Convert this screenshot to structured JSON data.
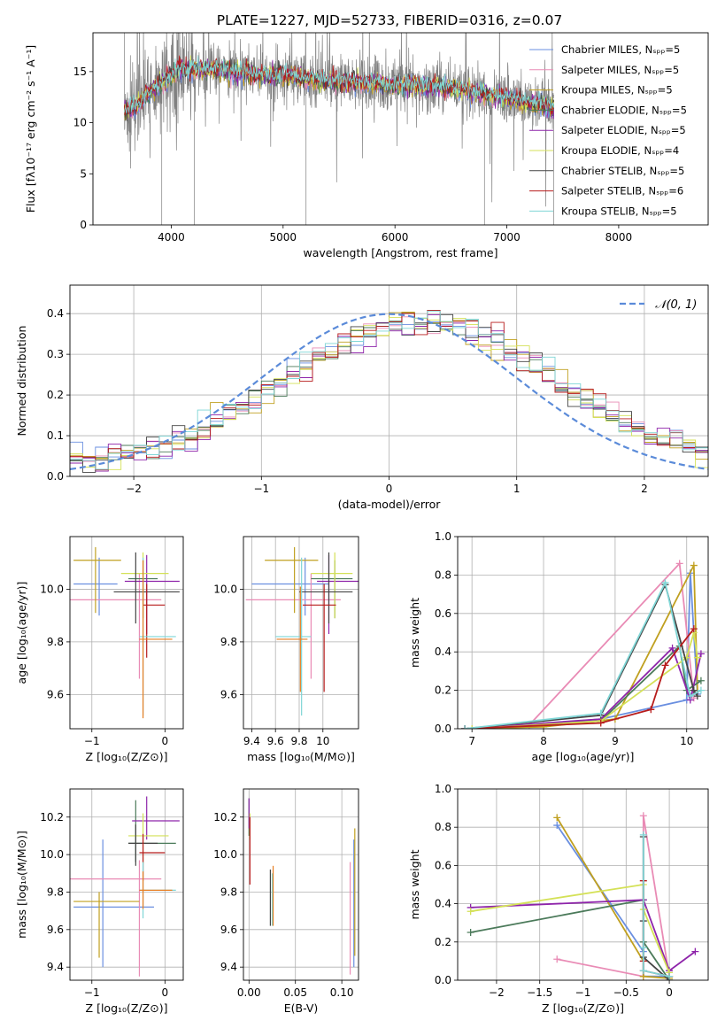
{
  "figure_title": "PLATE=1227, MJD=52733, FIBERID=0316, z=0.07",
  "colors": {
    "grid": "#b0b0b0",
    "series": [
      "#6a8fe0",
      "#e98bb5",
      "#c0a020",
      "#4b7a5a",
      "#8e24aa",
      "#d4e157",
      "#444444",
      "#b71c1c",
      "#7fd6d6",
      "#e67e22"
    ]
  },
  "chart_data": [
    {
      "id": "spectrum",
      "type": "line",
      "xlabel": "wavelength [Angstrom, rest frame]",
      "ylabel": "Flux [fλ10⁻¹⁷ erg cm⁻² s⁻¹ A⁻¹]",
      "xlim": [
        3300,
        8800
      ],
      "ylim": [
        0,
        18.8
      ],
      "xticks": [
        4000,
        5000,
        6000,
        7000,
        8000
      ],
      "yticks": [
        0,
        5,
        10,
        15
      ],
      "grid": false,
      "legend_position": "top-right",
      "legend": [
        "Chabrier MILES, Nₛₚₚ=5",
        "Salpeter MILES, Nₛₚₚ=5",
        "Kroupa MILES, Nₛₚₚ=5",
        "Chabrier ELODIE, Nₛₚₚ=5",
        "Salpeter ELODIE, Nₛₚₚ=5",
        "Kroupa ELODIE, Nₛₚₚ=4",
        "Chabrier STELIB, Nₛₚₚ=5",
        "Salpeter STELIB, Nₛₚₚ=6",
        "Kroupa STELIB, Nₛₚₚ=5"
      ],
      "continuum": {
        "x": [
          3580,
          3700,
          3800,
          3900,
          4000,
          4100,
          4200,
          4400,
          4600,
          4800,
          5000,
          5200,
          5500,
          5800,
          6000,
          6300,
          6600,
          6900,
          7200,
          7400
        ],
        "y": [
          11.0,
          11.8,
          13.0,
          13.8,
          14.6,
          15.4,
          15.1,
          15.2,
          15.0,
          14.7,
          14.6,
          14.3,
          14.0,
          13.8,
          13.7,
          13.6,
          13.3,
          12.6,
          12.0,
          11.6
        ]
      }
    },
    {
      "id": "residuals",
      "type": "histogram",
      "xlabel": "(data-model)/error",
      "ylabel": "Normed distribution",
      "xlim": [
        -2.5,
        2.5
      ],
      "ylim": [
        0,
        0.47
      ],
      "xticks": [
        -2,
        -1,
        0,
        1,
        2
      ],
      "yticks": [
        0.0,
        0.1,
        0.2,
        0.3,
        0.4
      ],
      "grid": true,
      "legend_position": "top-right",
      "legend": [
        "𝒩(0, 1)"
      ],
      "bin_width": 0.1
    },
    {
      "id": "age-vs-Z",
      "type": "errorbar",
      "xlabel": "Z [log₁₀(Z/Z⊙)]",
      "ylabel": "age  [log₁₀(age/yr)]",
      "xlim": [
        -1.3,
        0.25
      ],
      "ylim": [
        9.47,
        10.2
      ],
      "xticks": [
        -1,
        0
      ],
      "yticks": [
        9.6,
        9.8,
        10.0
      ],
      "grid": true,
      "points": [
        {
          "x": -0.9,
          "y": 10.02,
          "xerr": [
            0.35,
            0.25
          ],
          "yerr": [
            0.12,
            0.1
          ]
        },
        {
          "x": -0.35,
          "y": 9.96,
          "xerr": [
            0.95,
            0.3
          ],
          "yerr": [
            0.3,
            0.1
          ]
        },
        {
          "x": -0.95,
          "y": 10.11,
          "xerr": [
            0.3,
            0.35
          ],
          "yerr": [
            0.2,
            0.05
          ]
        },
        {
          "x": -0.3,
          "y": 10.04,
          "xerr": [
            0.2,
            0.2
          ],
          "yerr": [
            0.15,
            0.07
          ]
        },
        {
          "x": -0.25,
          "y": 10.03,
          "xerr": [
            0.3,
            0.45
          ],
          "yerr": [
            0.2,
            0.1
          ]
        },
        {
          "x": -0.3,
          "y": 10.06,
          "xerr": [
            0.3,
            0.35
          ],
          "yerr": [
            0.17,
            0.08
          ]
        },
        {
          "x": -0.4,
          "y": 9.99,
          "xerr": [
            0.3,
            0.6
          ],
          "yerr": [
            0.12,
            0.15
          ]
        },
        {
          "x": -0.25,
          "y": 9.94,
          "xerr": [
            0.05,
            0.25
          ],
          "yerr": [
            0.2,
            0.08
          ]
        },
        {
          "x": -0.3,
          "y": 9.82,
          "xerr": [
            0.05,
            0.45
          ],
          "yerr": [
            0.3,
            0.3
          ]
        },
        {
          "x": -0.3,
          "y": 9.81,
          "xerr": [
            0.05,
            0.4
          ],
          "yerr": [
            0.3,
            0.3
          ]
        }
      ]
    },
    {
      "id": "age-vs-mass",
      "type": "errorbar",
      "xlabel": "mass [log₁₀(M/M⊙)]",
      "xlim": [
        9.33,
        10.3
      ],
      "ylim": [
        9.47,
        10.2
      ],
      "xticks": [
        9.4,
        9.6,
        9.8,
        10.0
      ],
      "yticks": [
        9.6,
        9.8,
        10.0
      ],
      "grid": true,
      "points": [
        {
          "x": 9.85,
          "y": 10.02,
          "xerr": [
            0.45,
            0.2
          ],
          "yerr": [
            0.12,
            0.1
          ]
        },
        {
          "x": 9.9,
          "y": 9.96,
          "xerr": [
            0.55,
            0.25
          ],
          "yerr": [
            0.3,
            0.1
          ]
        },
        {
          "x": 9.76,
          "y": 10.11,
          "xerr": [
            0.25,
            0.2
          ],
          "yerr": [
            0.2,
            0.05
          ]
        },
        {
          "x": 10.1,
          "y": 10.04,
          "xerr": [
            0.2,
            0.15
          ],
          "yerr": [
            0.15,
            0.07
          ]
        },
        {
          "x": 10.05,
          "y": 10.03,
          "xerr": [
            0.1,
            0.25
          ],
          "yerr": [
            0.2,
            0.1
          ]
        },
        {
          "x": 10.1,
          "y": 10.06,
          "xerr": [
            0.2,
            0.15
          ],
          "yerr": [
            0.17,
            0.08
          ]
        },
        {
          "x": 10.05,
          "y": 9.99,
          "xerr": [
            0.25,
            0.2
          ],
          "yerr": [
            0.12,
            0.15
          ]
        },
        {
          "x": 10.01,
          "y": 9.94,
          "xerr": [
            0.18,
            0.1
          ],
          "yerr": [
            0.33,
            0.08
          ]
        },
        {
          "x": 9.82,
          "y": 9.82,
          "xerr": [
            0.22,
            0.08
          ],
          "yerr": [
            0.3,
            0.3
          ]
        },
        {
          "x": 9.81,
          "y": 9.81,
          "xerr": [
            0.2,
            0.06
          ],
          "yerr": [
            0.2,
            0.2
          ]
        }
      ]
    },
    {
      "id": "massweight-vs-age",
      "type": "line",
      "xlabel": "age  [log₁₀(age/yr)]",
      "ylabel": "mass weight",
      "xlim": [
        6.8,
        10.3
      ],
      "ylim": [
        0,
        1.0
      ],
      "xticks": [
        7,
        8,
        9,
        10
      ],
      "yticks": [
        0.0,
        0.2,
        0.4,
        0.6,
        0.8,
        1.0
      ],
      "grid": true,
      "series": [
        {
          "x": [
            6.9,
            7.5,
            8.8,
            10.0,
            10.05,
            10.15
          ],
          "y": [
            0.0,
            0.01,
            0.05,
            0.15,
            0.81,
            0.18
          ]
        },
        {
          "x": [
            7.0,
            7.8,
            9.9,
            10.1
          ],
          "y": [
            0.0,
            0.02,
            0.86,
            0.16
          ]
        },
        {
          "x": [
            6.9,
            8.0,
            9.0,
            10.1,
            10.15
          ],
          "y": [
            0.0,
            0.01,
            0.05,
            0.85,
            0.2
          ]
        },
        {
          "x": [
            6.9,
            8.8,
            9.9,
            10.0,
            10.2
          ],
          "y": [
            0.0,
            0.04,
            0.43,
            0.2,
            0.25
          ]
        },
        {
          "x": [
            6.9,
            8.8,
            9.8,
            10.05,
            10.2
          ],
          "y": [
            0.0,
            0.05,
            0.42,
            0.15,
            0.39
          ]
        },
        {
          "x": [
            7.0,
            8.8,
            10.0,
            10.1,
            10.15
          ],
          "y": [
            0.0,
            0.04,
            0.37,
            0.5,
            0.37
          ]
        },
        {
          "x": [
            6.9,
            8.8,
            9.7,
            10.1,
            10.15
          ],
          "y": [
            0.0,
            0.07,
            0.75,
            0.2,
            0.17
          ]
        },
        {
          "x": [
            6.9,
            8.8,
            9.5,
            9.7,
            10.1
          ],
          "y": [
            0.0,
            0.03,
            0.1,
            0.33,
            0.52
          ]
        },
        {
          "x": [
            6.9,
            8.8,
            9.7,
            10.05,
            10.2
          ],
          "y": [
            0.0,
            0.08,
            0.76,
            0.17,
            0.2
          ]
        }
      ]
    },
    {
      "id": "mass-vs-Z",
      "type": "errorbar",
      "xlabel": "Z [log₁₀(Z/Z⊙)]",
      "ylabel": "mass [log₁₀(M/M⊙)]",
      "xlim": [
        -1.3,
        0.25
      ],
      "ylim": [
        9.33,
        10.35
      ],
      "xticks": [
        -1,
        0
      ],
      "yticks": [
        9.4,
        9.6,
        9.8,
        10.0,
        10.2
      ],
      "grid": true,
      "points": [
        {
          "x": -0.85,
          "y": 9.72,
          "xerr": [
            0.4,
            0.7
          ],
          "yerr": [
            0.32,
            0.36
          ]
        },
        {
          "x": -0.35,
          "y": 9.87,
          "xerr": [
            0.95,
            0.3
          ],
          "yerr": [
            0.52,
            0.1
          ]
        },
        {
          "x": -0.9,
          "y": 9.75,
          "xerr": [
            0.35,
            0.55
          ],
          "yerr": [
            0.3,
            0.05
          ]
        },
        {
          "x": -0.4,
          "y": 10.06,
          "xerr": [
            0.1,
            0.55
          ],
          "yerr": [
            0.1,
            0.23
          ]
        },
        {
          "x": -0.25,
          "y": 10.18,
          "xerr": [
            0.2,
            0.45
          ],
          "yerr": [
            0.1,
            0.13
          ]
        },
        {
          "x": -0.3,
          "y": 10.1,
          "xerr": [
            0.2,
            0.35
          ],
          "yerr": [
            0.15,
            0.12
          ]
        },
        {
          "x": -0.4,
          "y": 10.06,
          "xerr": [
            0.1,
            0.3
          ],
          "yerr": [
            0.12,
            0.1
          ]
        },
        {
          "x": -0.3,
          "y": 10.01,
          "xerr": [
            0.05,
            0.3
          ],
          "yerr": [
            0.15,
            0.1
          ]
        },
        {
          "x": -0.3,
          "y": 9.81,
          "xerr": [
            0.05,
            0.45
          ],
          "yerr": [
            0.15,
            0.15
          ]
        },
        {
          "x": -0.3,
          "y": 9.81,
          "xerr": [
            0.05,
            0.4
          ],
          "yerr": [
            0.1,
            0.1
          ]
        }
      ]
    },
    {
      "id": "mass-vs-ebv",
      "type": "errorbar",
      "xlabel": "E(B-V)",
      "xlim": [
        -0.006,
        0.118
      ],
      "ylim": [
        9.33,
        10.35
      ],
      "xticks": [
        0.0,
        0.05,
        0.1
      ],
      "xtick_labels": [
        "0.00",
        "0.05",
        "0.10"
      ],
      "yticks": [
        9.4,
        9.6,
        9.8,
        10.0,
        10.2
      ],
      "grid": true,
      "points": [
        {
          "x": 0.113,
          "y": 9.74,
          "yerr": [
            0.34,
            0.34
          ]
        },
        {
          "x": 0.109,
          "y": 9.66,
          "yerr": [
            0.3,
            0.3
          ]
        },
        {
          "x": 0.114,
          "y": 9.8,
          "yerr": [
            0.34,
            0.34
          ]
        },
        {
          "x": 0.0,
          "y": 10.2,
          "yerr": [
            0.1,
            0.1
          ]
        },
        {
          "x": 0.0,
          "y": 10.22,
          "yerr": [
            0.08,
            0.08
          ]
        },
        {
          "x": 0.001,
          "y": 10.15,
          "yerr": [
            0.07,
            0.07
          ]
        },
        {
          "x": 0.023,
          "y": 9.77,
          "yerr": [
            0.15,
            0.15
          ]
        },
        {
          "x": 0.001,
          "y": 10.02,
          "yerr": [
            0.18,
            0.18
          ]
        },
        {
          "x": 0.025,
          "y": 9.76,
          "yerr": [
            0.14,
            0.14
          ]
        },
        {
          "x": 0.026,
          "y": 9.78,
          "yerr": [
            0.16,
            0.16
          ]
        }
      ]
    },
    {
      "id": "massweight-vs-Z",
      "type": "line",
      "xlabel": "Z [log₁₀(Z/Z⊙)]",
      "ylabel": "mass weight",
      "xlim": [
        -2.45,
        0.45
      ],
      "ylim": [
        0,
        1.0
      ],
      "xticks": [
        -2.0,
        -1.5,
        -1.0,
        -0.5,
        0.0
      ],
      "yticks": [
        0.0,
        0.2,
        0.4,
        0.6,
        0.8,
        1.0
      ],
      "grid": true,
      "series": [
        {
          "x": [
            -1.3,
            -0.3,
            -0.3,
            0.0
          ],
          "y": [
            0.81,
            0.15,
            0.02,
            0.02
          ]
        },
        {
          "x": [
            -1.3,
            -0.3,
            -0.3,
            0.0
          ],
          "y": [
            0.11,
            0.02,
            0.86,
            0.02
          ]
        },
        {
          "x": [
            -1.3,
            -0.3,
            -0.3,
            0.0
          ],
          "y": [
            0.85,
            0.1,
            0.02,
            0.01
          ]
        },
        {
          "x": [
            -2.3,
            -0.3,
            -0.3,
            0.0
          ],
          "y": [
            0.25,
            0.42,
            0.2,
            0.0
          ]
        },
        {
          "x": [
            -2.3,
            -0.3,
            0.0,
            0.3
          ],
          "y": [
            0.38,
            0.42,
            0.05,
            0.15
          ]
        },
        {
          "x": [
            -2.3,
            -0.3,
            -0.3,
            0.0
          ],
          "y": [
            0.36,
            0.5,
            0.37,
            0.04
          ]
        },
        {
          "x": [
            -0.3,
            -0.3,
            -0.3,
            0.0
          ],
          "y": [
            0.75,
            0.31,
            0.12,
            0.0
          ]
        },
        {
          "x": [
            -0.3,
            -0.3,
            -0.3,
            0.0
          ],
          "y": [
            0.52,
            0.1,
            0.05,
            0.02
          ]
        },
        {
          "x": [
            -0.3,
            -0.3,
            -0.3,
            0.0
          ],
          "y": [
            0.76,
            0.17,
            0.05,
            0.02
          ]
        }
      ]
    }
  ]
}
